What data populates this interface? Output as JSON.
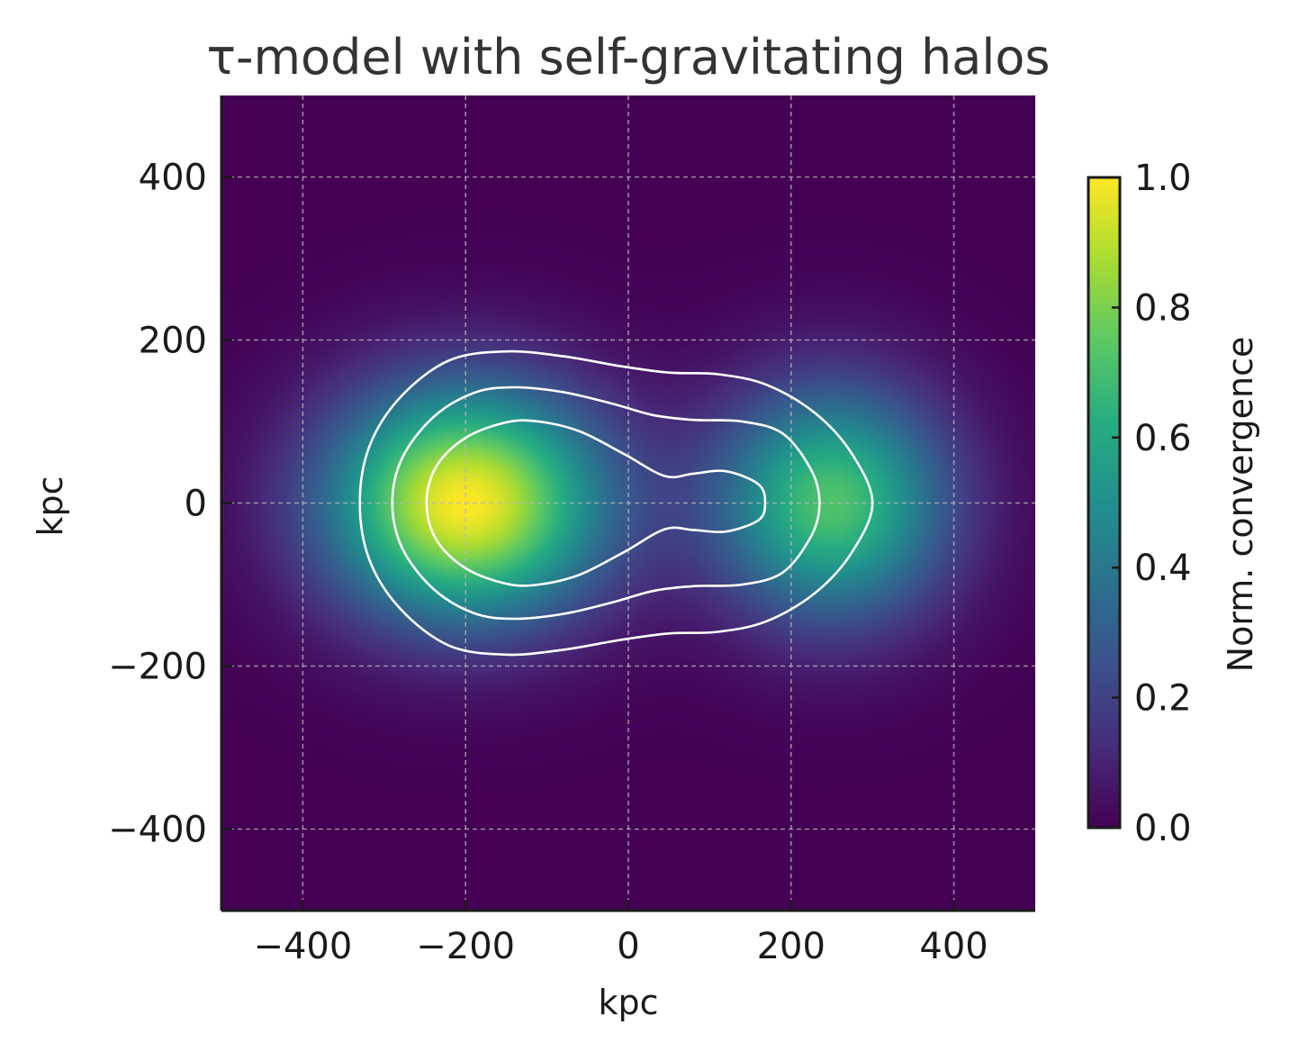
{
  "chart_data": {
    "type": "heatmap",
    "title": "τ-model with self-gravitating halos",
    "xlabel": "kpc",
    "ylabel": "kpc",
    "xlim": [
      -500,
      500
    ],
    "ylim": [
      -500,
      500
    ],
    "x_ticks": [
      -400,
      -200,
      0,
      200,
      400
    ],
    "y_ticks": [
      -400,
      -200,
      0,
      200,
      400
    ],
    "x_tick_labels": [
      "−400",
      "−200",
      "0",
      "200",
      "400"
    ],
    "y_tick_labels": [
      "−400",
      "−200",
      "0",
      "200",
      "400"
    ],
    "grid": true,
    "colormap": "viridis",
    "colorbar": {
      "label": "Norm. convergence",
      "range": [
        0,
        1
      ],
      "ticks": [
        0.0,
        0.2,
        0.4,
        0.6,
        0.8,
        1.0
      ],
      "tick_labels": [
        "0.0",
        "0.2",
        "0.4",
        "0.6",
        "0.8",
        "1.0"
      ]
    },
    "field_components": [
      {
        "x": -200,
        "y": 0,
        "sigma_x": 120,
        "sigma_y": 100,
        "amplitude": 1.0
      },
      {
        "x": 250,
        "y": 0,
        "sigma_x": 100,
        "sigma_y": 100,
        "amplitude": 0.72
      }
    ],
    "contours": {
      "color": "#ffffff",
      "levels": 3,
      "paths": [
        [
          [
            -330,
            0
          ],
          [
            -318,
            70
          ],
          [
            -280,
            130
          ],
          [
            -220,
            175
          ],
          [
            -150,
            186
          ],
          [
            -80,
            180
          ],
          [
            -10,
            168
          ],
          [
            50,
            160
          ],
          [
            110,
            158
          ],
          [
            170,
            145
          ],
          [
            230,
            110
          ],
          [
            275,
            60
          ],
          [
            300,
            0
          ],
          [
            275,
            -60
          ],
          [
            230,
            -110
          ],
          [
            170,
            -145
          ],
          [
            110,
            -158
          ],
          [
            50,
            -160
          ],
          [
            -10,
            -168
          ],
          [
            -80,
            -180
          ],
          [
            -150,
            -186
          ],
          [
            -220,
            -175
          ],
          [
            -280,
            -130
          ],
          [
            -318,
            -70
          ]
        ],
        [
          [
            -290,
            0
          ],
          [
            -278,
            55
          ],
          [
            -240,
            105
          ],
          [
            -190,
            135
          ],
          [
            -140,
            142
          ],
          [
            -80,
            136
          ],
          [
            -20,
            122
          ],
          [
            30,
            108
          ],
          [
            80,
            102
          ],
          [
            140,
            100
          ],
          [
            190,
            85
          ],
          [
            225,
            40
          ],
          [
            235,
            0
          ],
          [
            225,
            -40
          ],
          [
            190,
            -85
          ],
          [
            140,
            -100
          ],
          [
            80,
            -102
          ],
          [
            30,
            -108
          ],
          [
            -20,
            -122
          ],
          [
            -80,
            -136
          ],
          [
            -140,
            -142
          ],
          [
            -190,
            -135
          ],
          [
            -240,
            -105
          ],
          [
            -278,
            -55
          ]
        ],
        [
          [
            -248,
            0
          ],
          [
            -236,
            45
          ],
          [
            -200,
            80
          ],
          [
            -150,
            99
          ],
          [
            -110,
            100
          ],
          [
            -60,
            88
          ],
          [
            -5,
            60
          ],
          [
            45,
            33
          ],
          [
            80,
            36
          ],
          [
            120,
            39
          ],
          [
            160,
            23
          ],
          [
            168,
            0
          ],
          [
            160,
            -21
          ],
          [
            120,
            -35
          ],
          [
            80,
            -33
          ],
          [
            45,
            -32
          ],
          [
            -5,
            -60
          ],
          [
            -60,
            -88
          ],
          [
            -110,
            -100
          ],
          [
            -150,
            -99
          ],
          [
            -200,
            -80
          ],
          [
            -236,
            -45
          ]
        ]
      ]
    }
  }
}
